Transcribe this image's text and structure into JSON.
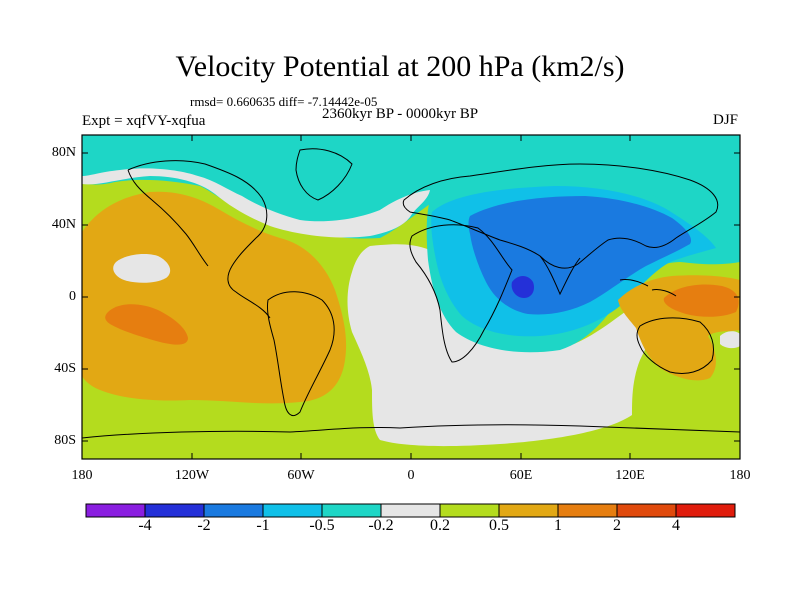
{
  "map": {
    "title": "Velocity Potential at 200 hPa (km2/s)",
    "stats": "rmsd= 0.660635 diff= -7.14442e-05",
    "experiment": "Expt = xqfVY-xqfua",
    "period": "2360kyr BP - 0000kyr BP",
    "season": "DJF",
    "projection": "cylindrical equidistant",
    "lat_range": [
      -90,
      90
    ],
    "lon_range": [
      -180,
      180
    ],
    "y_ticks": [
      "80N",
      "40N",
      "0",
      "40S",
      "80S"
    ],
    "x_ticks": [
      "180",
      "120W",
      "60W",
      "0",
      "60E",
      "120E",
      "180"
    ]
  },
  "colorbar": {
    "colors": [
      "#8a1ee0",
      "#2430d8",
      "#1a7ae0",
      "#10c0e8",
      "#1ed6c6",
      "#e6e6e6",
      "#b4dc1e",
      "#e2a814",
      "#e67e10",
      "#e04a0c",
      "#e01c0c"
    ],
    "labels": [
      "-4",
      "-2",
      "-1",
      "-0.5",
      "-0.2",
      "0.2",
      "0.5",
      "1",
      "2",
      "4"
    ]
  }
}
